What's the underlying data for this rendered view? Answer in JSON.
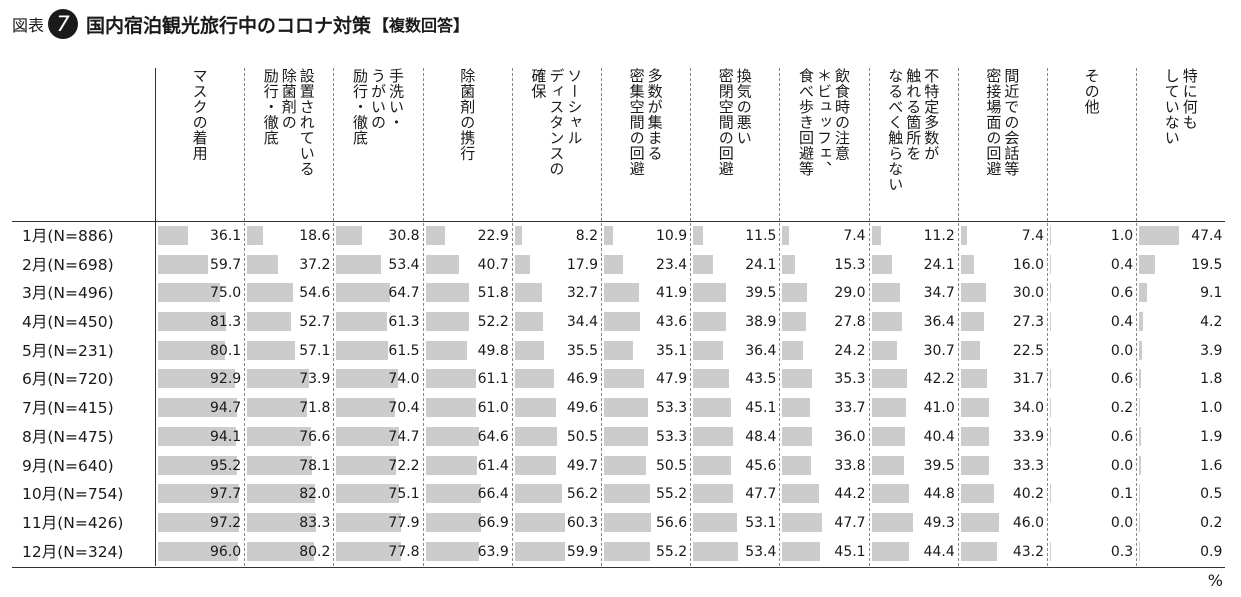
{
  "header": {
    "fig_label": "図表",
    "fig_number": "7",
    "title": "国内宿泊観光旅行中のコロナ対策",
    "subtitle": "【複数回答】"
  },
  "unit": "%",
  "colors": {
    "bar": "#cccccc",
    "text": "#1a1a1a"
  },
  "chart_data": {
    "type": "table",
    "columns": [
      "マスクの着用",
      "設置されている 除菌剤の 励行・徹底",
      "手洗い・ うがいの 励行・徹底",
      "除菌剤の携行",
      "ソーシャル ディスタンスの 確保",
      "多数が集まる 密集空間の回避",
      "換気の悪い 密閉空間の回避",
      "飲食時の注意 ＊ビュッフェ、 食べ歩き回避等",
      "不特定多数が 触れる箇所を なるべく触らない",
      "間近での会話等 密接場面の回避",
      "その他",
      "特に何も していない"
    ],
    "rows": [
      {
        "label": "1月(N=886)",
        "values": [
          36.1,
          18.6,
          30.8,
          22.9,
          8.2,
          10.9,
          11.5,
          7.4,
          11.2,
          7.4,
          1.0,
          47.4
        ]
      },
      {
        "label": "2月(N=698)",
        "values": [
          59.7,
          37.2,
          53.4,
          40.7,
          17.9,
          23.4,
          24.1,
          15.3,
          24.1,
          16.0,
          0.4,
          19.5
        ]
      },
      {
        "label": "3月(N=496)",
        "values": [
          75.0,
          54.6,
          64.7,
          51.8,
          32.7,
          41.9,
          39.5,
          29.0,
          34.7,
          30.0,
          0.6,
          9.1
        ]
      },
      {
        "label": "4月(N=450)",
        "values": [
          81.3,
          52.7,
          61.3,
          52.2,
          34.4,
          43.6,
          38.9,
          27.8,
          36.4,
          27.3,
          0.4,
          4.2
        ]
      },
      {
        "label": "5月(N=231)",
        "values": [
          80.1,
          57.1,
          61.5,
          49.8,
          35.5,
          35.1,
          36.4,
          24.2,
          30.7,
          22.5,
          0.0,
          3.9
        ]
      },
      {
        "label": "6月(N=720)",
        "values": [
          92.9,
          73.9,
          74.0,
          61.1,
          46.9,
          47.9,
          43.5,
          35.3,
          42.2,
          31.7,
          0.6,
          1.8
        ]
      },
      {
        "label": "7月(N=415)",
        "values": [
          94.7,
          71.8,
          70.4,
          61.0,
          49.6,
          53.3,
          45.1,
          33.7,
          41.0,
          34.0,
          0.2,
          1.0
        ]
      },
      {
        "label": "8月(N=475)",
        "values": [
          94.1,
          76.6,
          74.7,
          64.6,
          50.5,
          53.3,
          48.4,
          36.0,
          40.4,
          33.9,
          0.6,
          1.9
        ]
      },
      {
        "label": "9月(N=640)",
        "values": [
          95.2,
          78.1,
          72.2,
          61.4,
          49.7,
          50.5,
          45.6,
          33.8,
          39.5,
          33.3,
          0.0,
          1.6
        ]
      },
      {
        "label": "10月(N=754)",
        "values": [
          97.7,
          82.0,
          75.1,
          66.4,
          56.2,
          55.2,
          47.7,
          44.2,
          44.8,
          40.2,
          0.1,
          0.5
        ]
      },
      {
        "label": "11月(N=426)",
        "values": [
          97.2,
          83.3,
          77.9,
          66.9,
          60.3,
          56.6,
          53.1,
          47.7,
          49.3,
          46.0,
          0.0,
          0.2
        ]
      },
      {
        "label": "12月(N=324)",
        "values": [
          96.0,
          80.2,
          77.8,
          63.9,
          59.9,
          55.2,
          53.4,
          45.1,
          44.4,
          43.2,
          0.3,
          0.9
        ]
      }
    ],
    "value_max": 100
  }
}
